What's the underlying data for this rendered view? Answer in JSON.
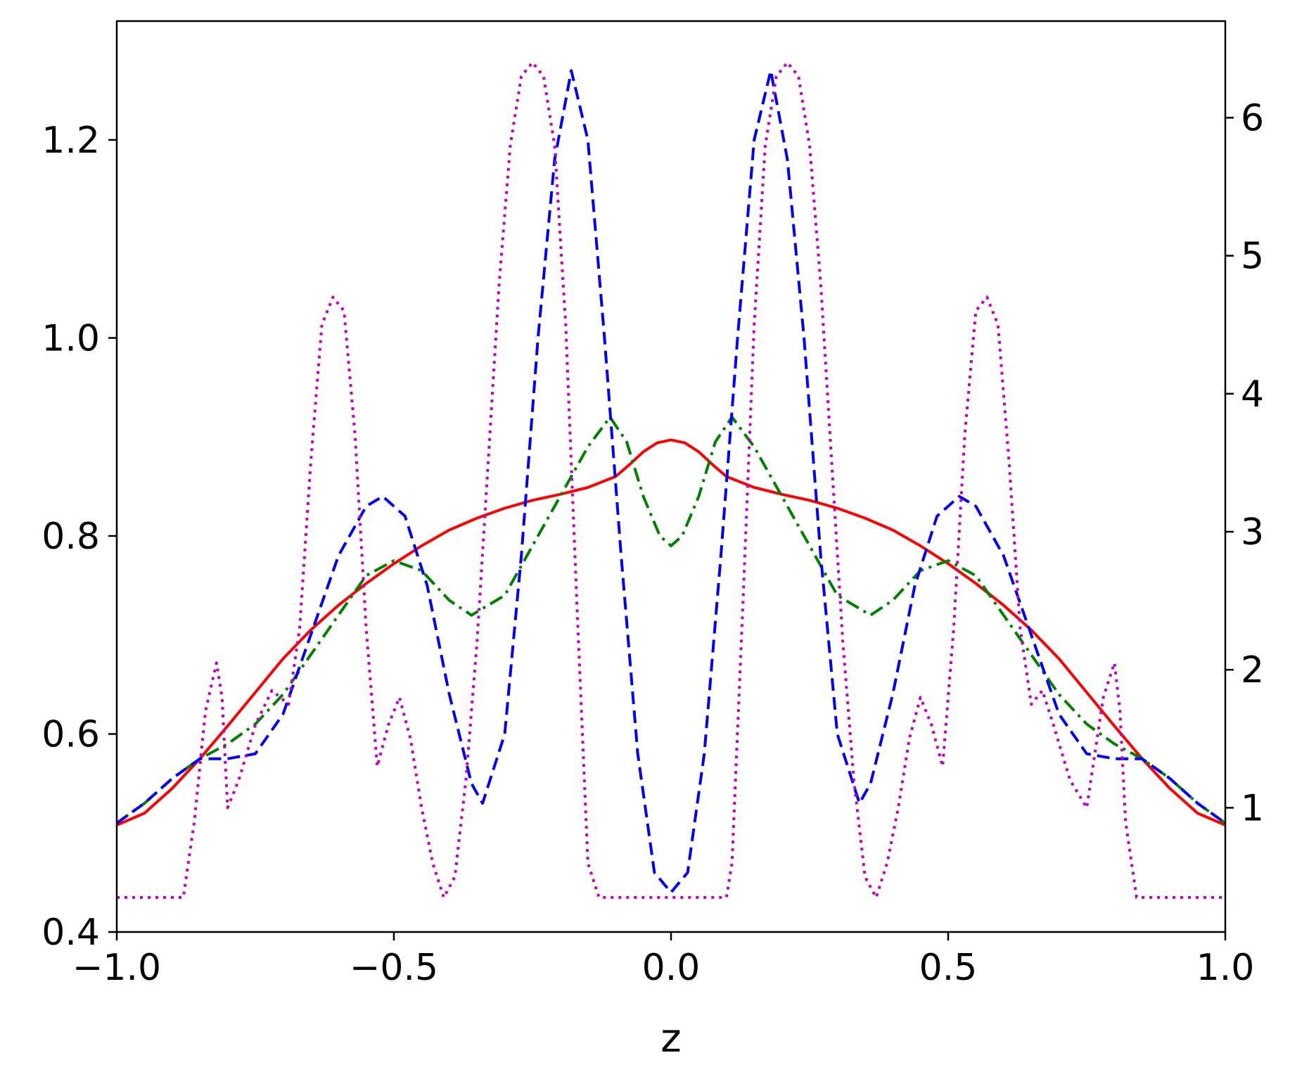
{
  "chart_data": {
    "type": "line",
    "title": "",
    "xlabel": "z",
    "ylabel": "",
    "xlim": [
      -1.0,
      1.0
    ],
    "ylim_left": [
      0.4,
      1.32
    ],
    "ylim_right": [
      0.1,
      6.7
    ],
    "grid": false,
    "legend": "none",
    "x_ticks": [
      -1.0,
      -0.5,
      0.0,
      0.5,
      1.0
    ],
    "x_tick_labels": [
      "−1.0",
      "−0.5",
      "0.0",
      "0.5",
      "1.0"
    ],
    "y_left_ticks": [
      0.4,
      0.6,
      0.8,
      1.0,
      1.2
    ],
    "y_left_tick_labels": [
      "0.4",
      "0.6",
      "0.8",
      "1.0",
      "1.2"
    ],
    "y_right_ticks": [
      1,
      2,
      3,
      4,
      5,
      6
    ],
    "y_right_tick_labels": [
      "1",
      "2",
      "3",
      "4",
      "5",
      "6"
    ],
    "series": [
      {
        "axis": "left",
        "color": "#ff0000",
        "style": "solid",
        "x": [
          -1.0,
          -0.95,
          -0.9,
          -0.85,
          -0.8,
          -0.75,
          -0.7,
          -0.65,
          -0.6,
          -0.55,
          -0.5,
          -0.45,
          -0.4,
          -0.35,
          -0.3,
          -0.25,
          -0.2,
          -0.15,
          -0.1,
          -0.075,
          -0.05,
          -0.025,
          0.0,
          0.025,
          0.05,
          0.075,
          0.1,
          0.15,
          0.2,
          0.25,
          0.3,
          0.35,
          0.4,
          0.45,
          0.5,
          0.55,
          0.6,
          0.65,
          0.7,
          0.75,
          0.8,
          0.85,
          0.9,
          0.95,
          1.0
        ],
        "y": [
          0.508,
          0.52,
          0.545,
          0.575,
          0.608,
          0.642,
          0.676,
          0.705,
          0.73,
          0.752,
          0.772,
          0.79,
          0.806,
          0.818,
          0.828,
          0.836,
          0.842,
          0.849,
          0.86,
          0.872,
          0.885,
          0.894,
          0.897,
          0.894,
          0.885,
          0.872,
          0.86,
          0.849,
          0.842,
          0.836,
          0.828,
          0.818,
          0.806,
          0.79,
          0.772,
          0.752,
          0.73,
          0.705,
          0.676,
          0.642,
          0.608,
          0.575,
          0.545,
          0.52,
          0.508
        ]
      },
      {
        "axis": "left",
        "color": "#008000",
        "style": "dashdot",
        "x": [
          -1.0,
          -0.95,
          -0.9,
          -0.85,
          -0.8,
          -0.75,
          -0.7,
          -0.65,
          -0.6,
          -0.55,
          -0.5,
          -0.45,
          -0.4,
          -0.36,
          -0.3,
          -0.25,
          -0.2,
          -0.15,
          -0.11,
          -0.08,
          -0.05,
          -0.02,
          0.0,
          0.02,
          0.05,
          0.08,
          0.11,
          0.15,
          0.2,
          0.25,
          0.3,
          0.36,
          0.4,
          0.45,
          0.5,
          0.55,
          0.6,
          0.65,
          0.7,
          0.75,
          0.8,
          0.85,
          0.9,
          0.95,
          1.0
        ],
        "y": [
          0.51,
          0.53,
          0.555,
          0.575,
          0.59,
          0.61,
          0.64,
          0.68,
          0.72,
          0.76,
          0.775,
          0.765,
          0.735,
          0.72,
          0.74,
          0.79,
          0.84,
          0.89,
          0.92,
          0.895,
          0.84,
          0.8,
          0.79,
          0.8,
          0.84,
          0.895,
          0.92,
          0.89,
          0.84,
          0.79,
          0.74,
          0.72,
          0.735,
          0.765,
          0.775,
          0.76,
          0.72,
          0.68,
          0.64,
          0.61,
          0.59,
          0.575,
          0.555,
          0.53,
          0.51
        ]
      },
      {
        "axis": "left",
        "color": "#0000ff",
        "style": "dashed",
        "x": [
          -1.0,
          -0.95,
          -0.9,
          -0.85,
          -0.8,
          -0.75,
          -0.7,
          -0.65,
          -0.6,
          -0.55,
          -0.52,
          -0.48,
          -0.44,
          -0.4,
          -0.36,
          -0.34,
          -0.3,
          -0.27,
          -0.24,
          -0.21,
          -0.18,
          -0.15,
          -0.12,
          -0.09,
          -0.06,
          -0.03,
          0.0,
          0.03,
          0.06,
          0.09,
          0.12,
          0.15,
          0.18,
          0.21,
          0.24,
          0.27,
          0.3,
          0.34,
          0.36,
          0.4,
          0.44,
          0.48,
          0.52,
          0.55,
          0.6,
          0.65,
          0.7,
          0.75,
          0.8,
          0.85,
          0.9,
          0.95,
          1.0
        ],
        "y": [
          0.51,
          0.53,
          0.555,
          0.575,
          0.575,
          0.58,
          0.62,
          0.7,
          0.78,
          0.83,
          0.84,
          0.82,
          0.75,
          0.64,
          0.55,
          0.53,
          0.6,
          0.78,
          1.0,
          1.18,
          1.27,
          1.2,
          1.0,
          0.78,
          0.58,
          0.46,
          0.44,
          0.46,
          0.58,
          0.78,
          1.0,
          1.2,
          1.27,
          1.18,
          1.0,
          0.78,
          0.6,
          0.53,
          0.55,
          0.64,
          0.75,
          0.82,
          0.84,
          0.83,
          0.78,
          0.7,
          0.62,
          0.58,
          0.575,
          0.575,
          0.555,
          0.53,
          0.51
        ]
      },
      {
        "axis": "right",
        "color": "#c000c0",
        "style": "dotted",
        "x": [
          -1.0,
          -0.88,
          -0.86,
          -0.84,
          -0.82,
          -0.81,
          -0.8,
          -0.78,
          -0.75,
          -0.72,
          -0.69,
          -0.67,
          -0.65,
          -0.63,
          -0.61,
          -0.59,
          -0.57,
          -0.55,
          -0.53,
          -0.51,
          -0.49,
          -0.47,
          -0.45,
          -0.43,
          -0.41,
          -0.39,
          -0.37,
          -0.35,
          -0.33,
          -0.31,
          -0.29,
          -0.27,
          -0.25,
          -0.23,
          -0.21,
          -0.19,
          -0.17,
          -0.15,
          -0.13,
          -0.11,
          -0.1,
          -0.08,
          -0.06,
          -0.04,
          -0.02,
          0.0,
          0.02,
          0.04,
          0.06,
          0.08,
          0.1,
          0.11,
          0.13,
          0.15,
          0.17,
          0.19,
          0.21,
          0.23,
          0.25,
          0.27,
          0.29,
          0.31,
          0.33,
          0.35,
          0.37,
          0.39,
          0.41,
          0.43,
          0.45,
          0.47,
          0.49,
          0.51,
          0.53,
          0.55,
          0.57,
          0.59,
          0.61,
          0.63,
          0.65,
          0.67,
          0.69,
          0.72,
          0.75,
          0.78,
          0.8,
          0.81,
          0.82,
          0.84,
          0.86,
          0.88,
          1.0
        ],
        "y": [
          0.35,
          0.35,
          0.9,
          1.7,
          2.05,
          1.8,
          1.0,
          1.2,
          1.6,
          1.85,
          1.75,
          2.3,
          3.5,
          4.5,
          4.7,
          4.6,
          3.7,
          2.3,
          1.3,
          1.6,
          1.8,
          1.5,
          1.0,
          0.6,
          0.35,
          0.5,
          1.2,
          2.2,
          3.5,
          4.8,
          5.8,
          6.3,
          6.4,
          6.3,
          5.8,
          4.5,
          2.5,
          0.6,
          0.35,
          0.35,
          0.35,
          0.35,
          0.35,
          0.35,
          0.35,
          0.35,
          0.35,
          0.35,
          0.35,
          0.35,
          0.35,
          0.6,
          2.5,
          4.5,
          5.8,
          6.3,
          6.4,
          6.3,
          5.8,
          4.8,
          3.5,
          2.2,
          1.2,
          0.5,
          0.35,
          0.6,
          1.0,
          1.5,
          1.8,
          1.6,
          1.3,
          2.3,
          3.7,
          4.6,
          4.7,
          4.5,
          3.5,
          2.3,
          1.75,
          1.85,
          1.6,
          1.2,
          1.0,
          1.8,
          2.05,
          1.7,
          0.9,
          0.35,
          0.35,
          0.35,
          0.35
        ]
      }
    ]
  }
}
